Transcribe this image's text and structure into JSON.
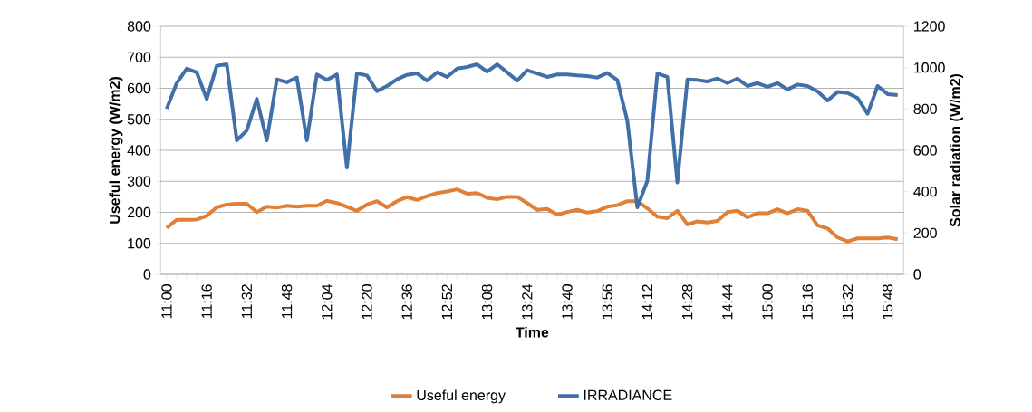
{
  "chart_data": {
    "type": "line",
    "xlabel": "Time",
    "ylabel": "Useful energy (W/m2)",
    "y2label": "Solar radiation (W/m2)",
    "categories": [
      "11:00",
      null,
      null,
      null,
      "11:16",
      null,
      null,
      null,
      "11:32",
      null,
      null,
      null,
      "11:48",
      null,
      null,
      null,
      "12:04",
      null,
      null,
      null,
      "12:20",
      null,
      null,
      null,
      "12:36",
      null,
      null,
      null,
      "12:52",
      null,
      null,
      null,
      "13:08",
      null,
      null,
      null,
      "13:24",
      null,
      null,
      null,
      "13:40",
      null,
      null,
      null,
      "13:56",
      null,
      null,
      null,
      "14:12",
      null,
      null,
      null,
      "14:28",
      null,
      null,
      null,
      "14:44",
      null,
      null,
      null,
      "15:00",
      null,
      null,
      null,
      "15:16",
      null,
      null,
      null,
      "15:32",
      null,
      null,
      null,
      "15:48",
      null
    ],
    "series": [
      {
        "name": "Useful energy",
        "color": "#e07f35",
        "values": [
          150,
          176,
          176,
          177,
          189,
          216,
          225,
          228,
          228,
          201,
          218,
          215,
          221,
          218,
          221,
          221,
          237,
          230,
          218,
          205,
          225,
          236,
          216,
          236,
          249,
          240,
          252,
          262,
          267,
          274,
          260,
          262,
          247,
          242,
          250,
          250,
          230,
          208,
          211,
          192,
          201,
          208,
          199,
          204,
          218,
          223,
          236,
          236,
          213,
          186,
          181,
          205,
          161,
          171,
          167,
          172,
          201,
          205,
          184,
          197,
          197,
          210,
          197,
          210,
          205,
          158,
          148,
          119,
          106,
          116,
          116,
          116,
          119,
          113
        ]
      },
      {
        "name": "IRRADIANCE",
        "color": "#4170a8",
        "axis": "y2",
        "values": [
          801,
          925,
          995,
          977,
          848,
          1009,
          1016,
          648,
          696,
          849,
          648,
          943,
          929,
          952,
          648,
          967,
          940,
          967,
          517,
          972,
          962,
          886,
          911,
          943,
          965,
          972,
          937,
          977,
          955,
          995,
          1003,
          1016,
          981,
          1016,
          977,
          937,
          987,
          972,
          955,
          967,
          967,
          962,
          959,
          952,
          974,
          940,
          743,
          324,
          451,
          972,
          955,
          444,
          943,
          940,
          933,
          947,
          925,
          947,
          911,
          925,
          907,
          925,
          894,
          918,
          911,
          885,
          841,
          882,
          877,
          853,
          777,
          911,
          872,
          867
        ]
      }
    ],
    "ylim": [
      0,
      800
    ],
    "yticks": [
      0,
      100,
      200,
      300,
      400,
      500,
      600,
      700,
      800
    ],
    "y2lim": [
      0,
      1200
    ],
    "y2ticks": [
      0,
      200,
      400,
      600,
      800,
      1000,
      1200
    ],
    "grid": "y",
    "legend": "bottom",
    "marker": "none",
    "line_style": "solid"
  }
}
